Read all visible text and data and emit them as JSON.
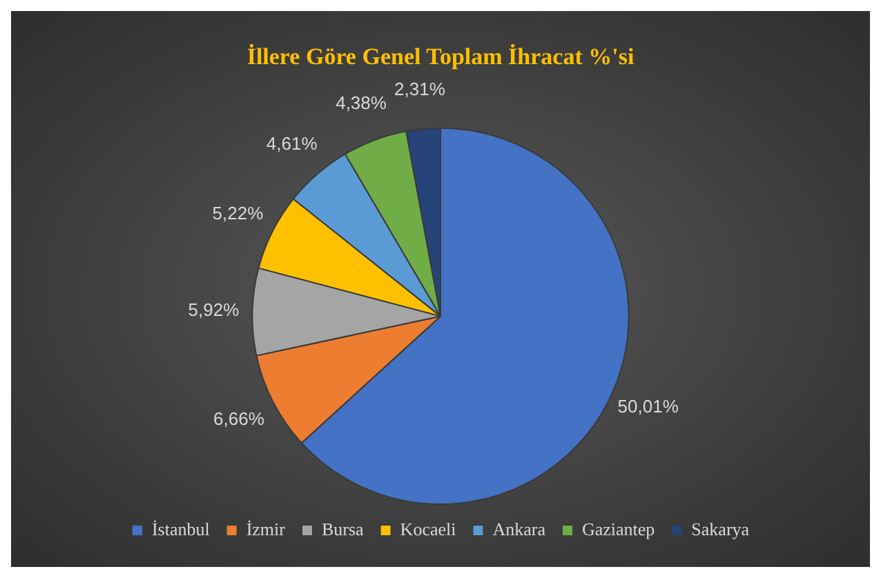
{
  "chart_data": {
    "type": "pie",
    "title": "İllere Göre Genel Toplam İhracat %'si",
    "categories": [
      "İstanbul",
      "İzmir",
      "Bursa",
      "Kocaeli",
      "Ankara",
      "Gaziantep",
      "Sakarya"
    ],
    "values": [
      50.01,
      6.66,
      5.92,
      5.22,
      4.61,
      4.38,
      2.31
    ],
    "value_labels": [
      "50,01%",
      "6,66%",
      "5,92%",
      "5,22%",
      "4,61%",
      "4,38%",
      "2,31%"
    ],
    "colors": [
      "#4472c4",
      "#ed7d31",
      "#a5a5a5",
      "#ffc000",
      "#5b9bd5",
      "#70ad47",
      "#264478"
    ],
    "legend": "bottom"
  }
}
